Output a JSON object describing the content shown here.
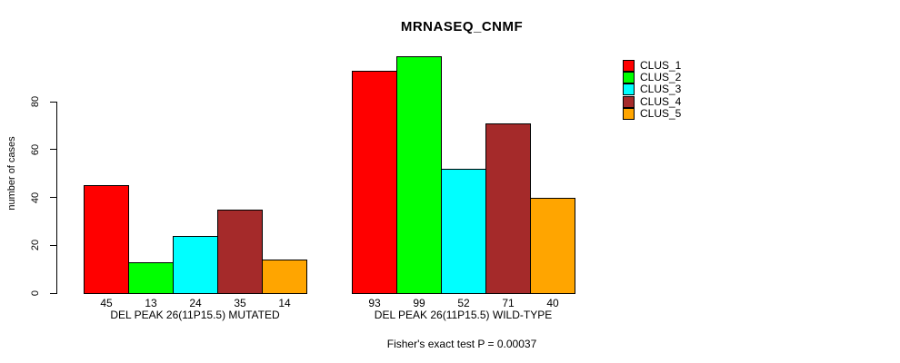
{
  "title": "MRNASEQ_CNMF",
  "caption": "Fisher's exact test P = 0.00037",
  "chart_data": {
    "type": "bar",
    "title": "MRNASEQ_CNMF",
    "ylabel": "number of cases",
    "xlabel": "",
    "ylim": [
      0,
      100
    ],
    "yticks": [
      0,
      20,
      40,
      60,
      80
    ],
    "grid": false,
    "bar_value_labels_shown": true,
    "legend_position": "top-right",
    "categories": [
      "DEL PEAK 26(11P15.5) MUTATED",
      "DEL PEAK 26(11P15.5) WILD-TYPE"
    ],
    "series": [
      {
        "name": "CLUS_1",
        "color": "#FF0000",
        "values": [
          45,
          93
        ]
      },
      {
        "name": "CLUS_2",
        "color": "#00FF00",
        "values": [
          13,
          99
        ]
      },
      {
        "name": "CLUS_3",
        "color": "#00FFFF",
        "values": [
          24,
          52
        ]
      },
      {
        "name": "CLUS_4",
        "color": "#A52A2A",
        "values": [
          35,
          71
        ]
      },
      {
        "name": "CLUS_5",
        "color": "#FFA500",
        "values": [
          14,
          40
        ]
      }
    ],
    "annotation": "Fisher's exact test P = 0.00037"
  }
}
